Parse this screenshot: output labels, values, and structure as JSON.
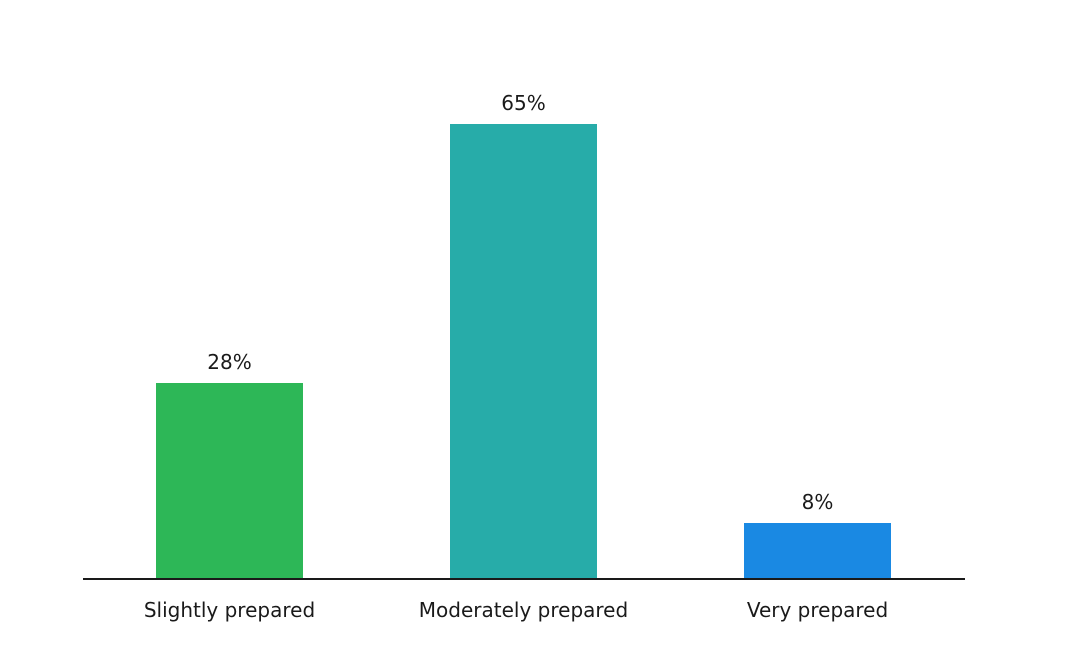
{
  "chart_data": {
    "type": "bar",
    "title": "",
    "xlabel": "",
    "ylabel": "",
    "categories": [
      "Slightly prepared",
      "Moderately prepared",
      "Very prepared"
    ],
    "values": [
      28,
      65,
      8
    ],
    "value_labels": [
      "28%",
      "65%",
      "8%"
    ],
    "colors": [
      "#2db757",
      "#27aca9",
      "#1a89e3"
    ],
    "ylim": [
      0,
      70
    ],
    "grid": false,
    "legend": "none"
  }
}
